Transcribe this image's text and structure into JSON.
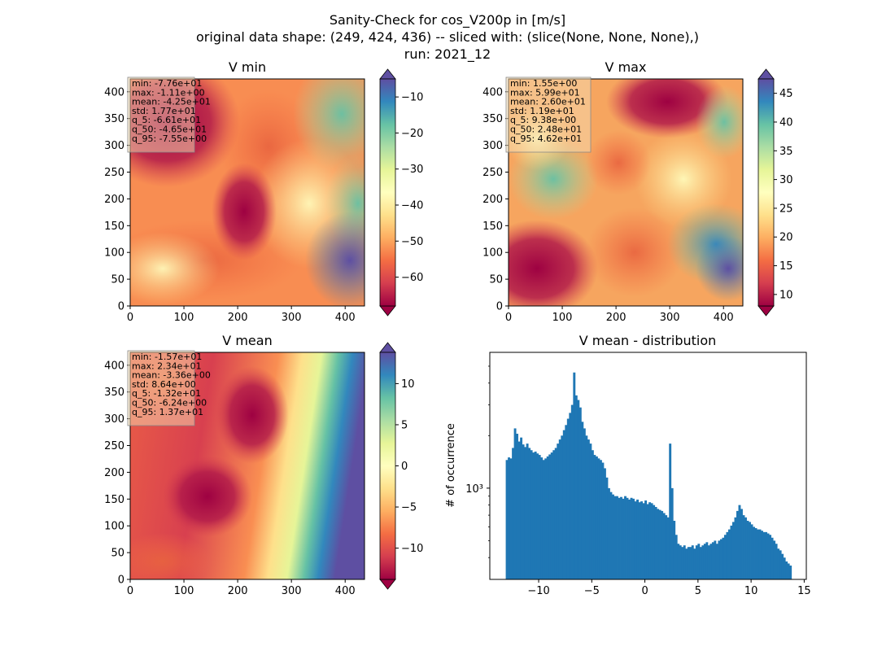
{
  "suptitle": {
    "line1": "Sanity-Check for cos_V200p in [m/s]",
    "line2": "original data shape: (249, 424, 436) -- sliced with: (slice(None, None, None),)",
    "line3": "run: 2021_12"
  },
  "colors": {
    "hist_bar": "#1f77b4",
    "colormap": "Spectral",
    "colormap_stops": [
      "#9e0142",
      "#d53e4f",
      "#f46d43",
      "#fdae61",
      "#fee08b",
      "#ffffbf",
      "#e6f598",
      "#abdda4",
      "#66c2a5",
      "#3288bd",
      "#5e4fa2"
    ]
  },
  "chart_data": [
    {
      "type": "heatmap",
      "title": "V min",
      "xlim": [
        0,
        436
      ],
      "ylim": [
        0,
        424
      ],
      "xticks": [
        0,
        100,
        200,
        300,
        400
      ],
      "yticks": [
        0,
        50,
        100,
        150,
        200,
        250,
        300,
        350,
        400
      ],
      "colorbar": {
        "range": [
          -68,
          -5
        ],
        "extend": "both",
        "ticks": [
          -60,
          -50,
          -40,
          -30,
          -20,
          -10
        ]
      },
      "stats": [
        "min: -7.76e+01",
        "max: -1.11e+00",
        "mean: -4.25e+01",
        "std: 1.77e+01",
        "q_5: -6.61e+01",
        "q_50: -4.65e+01",
        "q_95: -7.55e+00"
      ]
    },
    {
      "type": "heatmap",
      "title": "V max",
      "xlim": [
        0,
        436
      ],
      "ylim": [
        0,
        424
      ],
      "xticks": [
        0,
        100,
        200,
        300,
        400
      ],
      "yticks": [
        0,
        50,
        100,
        150,
        200,
        250,
        300,
        350,
        400
      ],
      "colorbar": {
        "range": [
          8,
          47.5
        ],
        "extend": "both",
        "ticks": [
          10,
          15,
          20,
          25,
          30,
          35,
          40,
          45
        ]
      },
      "stats": [
        "min: 1.55e+00",
        "max: 5.99e+01",
        "mean: 2.60e+01",
        "std: 1.19e+01",
        "q_5: 9.38e+00",
        "q_50: 2.48e+01",
        "q_95: 4.62e+01"
      ]
    },
    {
      "type": "heatmap",
      "title": "V mean",
      "xlim": [
        0,
        436
      ],
      "ylim": [
        0,
        424
      ],
      "xticks": [
        0,
        100,
        200,
        300,
        400
      ],
      "yticks": [
        0,
        50,
        100,
        150,
        200,
        250,
        300,
        350,
        400
      ],
      "colorbar": {
        "range": [
          -13.8,
          13.8
        ],
        "extend": "both",
        "ticks": [
          -10,
          -5,
          0,
          5,
          10
        ]
      },
      "stats": [
        "min: -1.57e+01",
        "max: 2.34e+01",
        "mean: -3.36e+00",
        "std: 8.64e+00",
        "q_5: -1.32e+01",
        "q_50: -6.24e+00",
        "q_95: 1.37e+01"
      ]
    },
    {
      "type": "bar",
      "title": "V mean - distribution",
      "ylabel": "# of occurrence",
      "xlabel": "",
      "xlim": [
        -14.6,
        15.2
      ],
      "ylim": [
        300,
        6000
      ],
      "yscale": "log",
      "xticks": [
        -10,
        -5,
        0,
        5,
        10,
        15
      ],
      "yticks": [
        {
          "value": 1000,
          "label": "10³"
        }
      ],
      "bin_range": [
        -13.1,
        13.8
      ],
      "values": [
        1450,
        1500,
        1480,
        1700,
        2200,
        2050,
        1850,
        1950,
        1780,
        1720,
        1800,
        1700,
        1650,
        1600,
        1620,
        1580,
        1550,
        1500,
        1450,
        1480,
        1520,
        1560,
        1600,
        1650,
        1700,
        1800,
        1900,
        2000,
        2150,
        2300,
        2500,
        2700,
        3000,
        4600,
        3400,
        3200,
        2900,
        2400,
        2200,
        2000,
        1900,
        1800,
        1650,
        1550,
        1520,
        1480,
        1450,
        1400,
        1300,
        1150,
        1000,
        950,
        920,
        900,
        900,
        880,
        890,
        870,
        900,
        880,
        860,
        880,
        870,
        840,
        860,
        830,
        840,
        820,
        850,
        810,
        830,
        820,
        800,
        780,
        760,
        750,
        740,
        720,
        700,
        680,
        1800,
        1000,
        650,
        540,
        480,
        470,
        460,
        470,
        450,
        460,
        460,
        470,
        450,
        470,
        480,
        460,
        470,
        480,
        490,
        470,
        480,
        490,
        500,
        480,
        500,
        510,
        520,
        540,
        560,
        580,
        610,
        640,
        680,
        740,
        800,
        760,
        700,
        680,
        650,
        640,
        620,
        600,
        590,
        580,
        580,
        570,
        560,
        560,
        550,
        540,
        520,
        500,
        480,
        450,
        440,
        420,
        400,
        380,
        370,
        360
      ]
    }
  ]
}
